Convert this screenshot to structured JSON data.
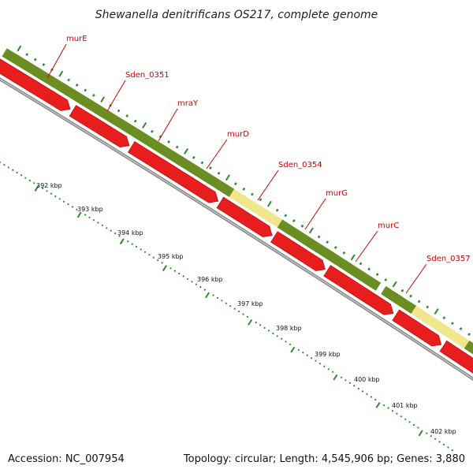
{
  "title": "Shewanella denitrificans OS217, complete genome",
  "footer": {
    "accession": "Accession: NC_007954",
    "summary": "Topology: circular; Length: 4,545,906 bp; Genes: 3,880"
  },
  "colors": {
    "gene_arrow": "#e81e1e",
    "gene_arrow_edge": "#b30000",
    "cog_dark": "#6b8e23",
    "cog_light": "#f0e68c",
    "backbone": "#888888",
    "tick": "#2e8b2e",
    "label": "#cc0000"
  },
  "genes": [
    {
      "name": "murE"
    },
    {
      "name": "Sden_0351"
    },
    {
      "name": "mraY"
    },
    {
      "name": "murD"
    },
    {
      "name": "Sden_0354"
    },
    {
      "name": "murG"
    },
    {
      "name": "murC"
    },
    {
      "name": "Sden_0357"
    }
  ],
  "kbp_ticks": [
    {
      "label": "392 kbp"
    },
    {
      "label": "393 kbp"
    },
    {
      "label": "394 kbp"
    },
    {
      "label": "395 kbp"
    },
    {
      "label": "396 kbp"
    },
    {
      "label": "397 kbp"
    },
    {
      "label": "398 kbp"
    },
    {
      "label": "399 kbp"
    },
    {
      "label": "400 kbp"
    },
    {
      "label": "401 kbp"
    },
    {
      "label": "402 kbp"
    }
  ]
}
